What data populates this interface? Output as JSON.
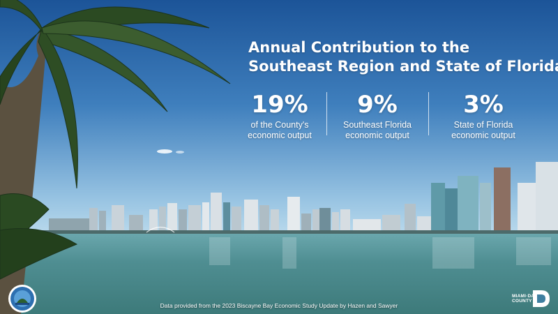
{
  "title": {
    "line1": "Annual Contribution to the",
    "line2": "Southeast Region and State of Florida"
  },
  "stats": [
    {
      "value": "19%",
      "caption_line1": "of the County's",
      "caption_line2": "economic output"
    },
    {
      "value": "9%",
      "caption_line1": "Southeast Florida",
      "caption_line2": "economic output"
    },
    {
      "value": "3%",
      "caption_line1": "State of Florida",
      "caption_line2": "economic output"
    }
  ],
  "footer": {
    "source": "Data provided from the 2023 Biscayne Bay Economic Study Update by Hazen and Sawyer"
  },
  "logo": {
    "line1": "MIAMI·DADE",
    "line2": "COUNTY"
  },
  "colors": {
    "sky_top": "#1f5a9e",
    "sky_bottom": "#a9cfe6",
    "water": "#4b8a8c",
    "text": "#ffffff"
  }
}
